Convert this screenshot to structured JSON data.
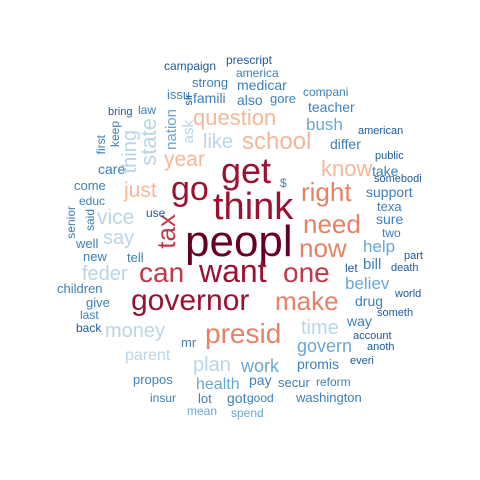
{
  "palette": {
    "darkest": "#67001f",
    "dark_red": "#9b1230",
    "red": "#c0394a",
    "salmon": "#e58268",
    "peach": "#f4b899",
    "light_blue": "#b9d5e8",
    "mid_blue": "#6aa7d0",
    "blue": "#3d7fb8",
    "dark_blue": "#1f5a99"
  },
  "words": [
    {
      "text": "peopl",
      "color": "#67001f"
    },
    {
      "text": "think",
      "color": "#9b1230"
    },
    {
      "text": "get",
      "color": "#9b1230"
    },
    {
      "text": "go",
      "color": "#9b1230"
    },
    {
      "text": "want",
      "color": "#9b1230"
    },
    {
      "text": "governor",
      "color": "#9b1230"
    },
    {
      "text": "can",
      "color": "#c0394a"
    },
    {
      "text": "one",
      "color": "#c0394a"
    },
    {
      "text": "tax",
      "color": "#c0394a"
    },
    {
      "text": "presid",
      "color": "#e58268"
    },
    {
      "text": "make",
      "color": "#e58268"
    },
    {
      "text": "need",
      "color": "#e58268"
    },
    {
      "text": "now",
      "color": "#e58268"
    },
    {
      "text": "right",
      "color": "#e58268"
    },
    {
      "text": "school",
      "color": "#f4b899"
    },
    {
      "text": "question",
      "color": "#f4b899"
    },
    {
      "text": "know",
      "color": "#f4b899"
    },
    {
      "text": "year",
      "color": "#f4b899"
    },
    {
      "text": "just",
      "color": "#f4b899"
    },
    {
      "text": "like",
      "color": "#b9d5e8"
    },
    {
      "text": "state",
      "color": "#b9d5e8"
    },
    {
      "text": "thing",
      "color": "#b9d5e8"
    },
    {
      "text": "vice",
      "color": "#b9d5e8"
    },
    {
      "text": "say",
      "color": "#b9d5e8"
    },
    {
      "text": "feder",
      "color": "#b9d5e8"
    },
    {
      "text": "money",
      "color": "#b9d5e8"
    },
    {
      "text": "time",
      "color": "#b9d5e8"
    },
    {
      "text": "plan",
      "color": "#b9d5e8"
    },
    {
      "text": "parent",
      "color": "#b9d5e8"
    },
    {
      "text": "health",
      "color": "#6aa7d0"
    },
    {
      "text": "work",
      "color": "#6aa7d0"
    },
    {
      "text": "govern",
      "color": "#6aa7d0"
    },
    {
      "text": "believ",
      "color": "#6aa7d0"
    },
    {
      "text": "bush",
      "color": "#6aa7d0"
    },
    {
      "text": "help",
      "color": "#6aa7d0"
    },
    {
      "text": "nation",
      "color": "#6aa7d0"
    },
    {
      "text": "ask",
      "color": "#b9d5e8"
    },
    {
      "text": "differ",
      "color": "#3d7fb8"
    },
    {
      "text": "teacher",
      "color": "#3d7fb8"
    },
    {
      "text": "take",
      "color": "#3d7fb8"
    },
    {
      "text": "support",
      "color": "#3d7fb8"
    },
    {
      "text": "sure",
      "color": "#3d7fb8"
    },
    {
      "text": "bill",
      "color": "#3d7fb8"
    },
    {
      "text": "drug",
      "color": "#3d7fb8"
    },
    {
      "text": "way",
      "color": "#3d7fb8"
    },
    {
      "text": "promis",
      "color": "#3d7fb8"
    },
    {
      "text": "pay",
      "color": "#3d7fb8"
    },
    {
      "text": "secur",
      "color": "#3d7fb8"
    },
    {
      "text": "reform",
      "color": "#3d7fb8"
    },
    {
      "text": "washington",
      "color": "#3d7fb8"
    },
    {
      "text": "propos",
      "color": "#3d7fb8"
    },
    {
      "text": "insur",
      "color": "#3d7fb8"
    },
    {
      "text": "lot",
      "color": "#3d7fb8"
    },
    {
      "text": "got",
      "color": "#3d7fb8"
    },
    {
      "text": "good",
      "color": "#3d7fb8"
    },
    {
      "text": "mean",
      "color": "#6aa7d0"
    },
    {
      "text": "spend",
      "color": "#6aa7d0"
    },
    {
      "text": "mr",
      "color": "#3d7fb8"
    },
    {
      "text": "care",
      "color": "#3d7fb8"
    },
    {
      "text": "come",
      "color": "#3d7fb8"
    },
    {
      "text": "educ",
      "color": "#3d7fb8"
    },
    {
      "text": "said",
      "color": "#3d7fb8"
    },
    {
      "text": "well",
      "color": "#3d7fb8"
    },
    {
      "text": "senior",
      "color": "#3d7fb8"
    },
    {
      "text": "new",
      "color": "#3d7fb8"
    },
    {
      "text": "tell",
      "color": "#3d7fb8"
    },
    {
      "text": "use",
      "color": "#1f5a99"
    },
    {
      "text": "children",
      "color": "#3d7fb8"
    },
    {
      "text": "give",
      "color": "#3d7fb8"
    },
    {
      "text": "last",
      "color": "#3d7fb8"
    },
    {
      "text": "back",
      "color": "#1f5a99"
    },
    {
      "text": "first",
      "color": "#3d7fb8"
    },
    {
      "text": "keep",
      "color": "#3d7fb8"
    },
    {
      "text": "bring",
      "color": "#1f5a99"
    },
    {
      "text": "law",
      "color": "#3d7fb8"
    },
    {
      "text": "issu",
      "color": "#3d7fb8"
    },
    {
      "text": "sir",
      "color": "#1f5a99"
    },
    {
      "text": "famili",
      "color": "#3d7fb8"
    },
    {
      "text": "also",
      "color": "#3d7fb8"
    },
    {
      "text": "gore",
      "color": "#3d7fb8"
    },
    {
      "text": "medicar",
      "color": "#3d7fb8"
    },
    {
      "text": "strong",
      "color": "#3d7fb8"
    },
    {
      "text": "america",
      "color": "#3d7fb8"
    },
    {
      "text": "campaign",
      "color": "#1f5a99"
    },
    {
      "text": "prescript",
      "color": "#1f5a99"
    },
    {
      "text": "compani",
      "color": "#3d7fb8"
    },
    {
      "text": "american",
      "color": "#1f5a99"
    },
    {
      "text": "public",
      "color": "#1f5a99"
    },
    {
      "text": "somebodi",
      "color": "#1f5a99"
    },
    {
      "text": "texa",
      "color": "#3d7fb8"
    },
    {
      "text": "two",
      "color": "#3d7fb8"
    },
    {
      "text": "part",
      "color": "#1f5a99"
    },
    {
      "text": "death",
      "color": "#1f5a99"
    },
    {
      "text": "let",
      "color": "#1f5a99"
    },
    {
      "text": "world",
      "color": "#1f5a99"
    },
    {
      "text": "someth",
      "color": "#1f5a99"
    },
    {
      "text": "account",
      "color": "#1f5a99"
    },
    {
      "text": "anoth",
      "color": "#1f5a99"
    },
    {
      "text": "everi",
      "color": "#1f5a99"
    },
    {
      "text": "$",
      "color": "#3d7fb8"
    }
  ]
}
